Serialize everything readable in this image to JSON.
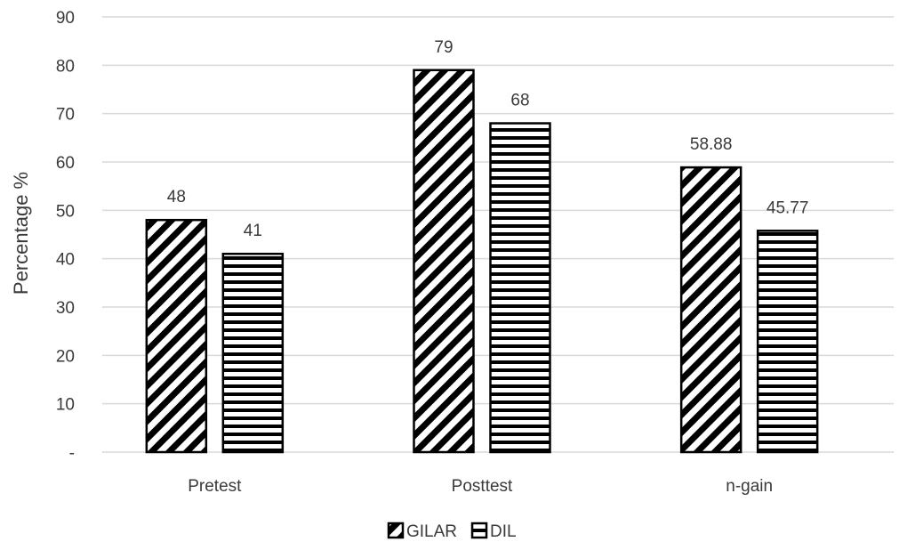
{
  "chart_data": {
    "type": "bar",
    "categories": [
      "Pretest",
      "Posttest",
      "n-gain"
    ],
    "series": [
      {
        "name": "GILAR",
        "values": [
          48,
          79,
          58.88
        ],
        "labels": [
          "48",
          "79",
          "58.88"
        ],
        "pattern": "diagonal"
      },
      {
        "name": "DIL",
        "values": [
          41,
          68,
          45.77
        ],
        "labels": [
          "41",
          "68",
          "45.77"
        ],
        "pattern": "horizontal"
      }
    ],
    "title": "",
    "xlabel": "",
    "ylabel": "Percentage %",
    "ylim": [
      0,
      90
    ],
    "yticks": [
      0,
      10,
      20,
      30,
      40,
      50,
      60,
      70,
      80,
      90
    ],
    "ytick_labels": [
      "-",
      "10",
      "20",
      "30",
      "40",
      "50",
      "60",
      "70",
      "80",
      "90"
    ],
    "grid": true,
    "legend_position": "bottom-center",
    "colors": {
      "bar_stroke": "#000000",
      "hatch": "#000000",
      "grid": "#d9d9d9",
      "text": "#3a3a3a"
    }
  }
}
